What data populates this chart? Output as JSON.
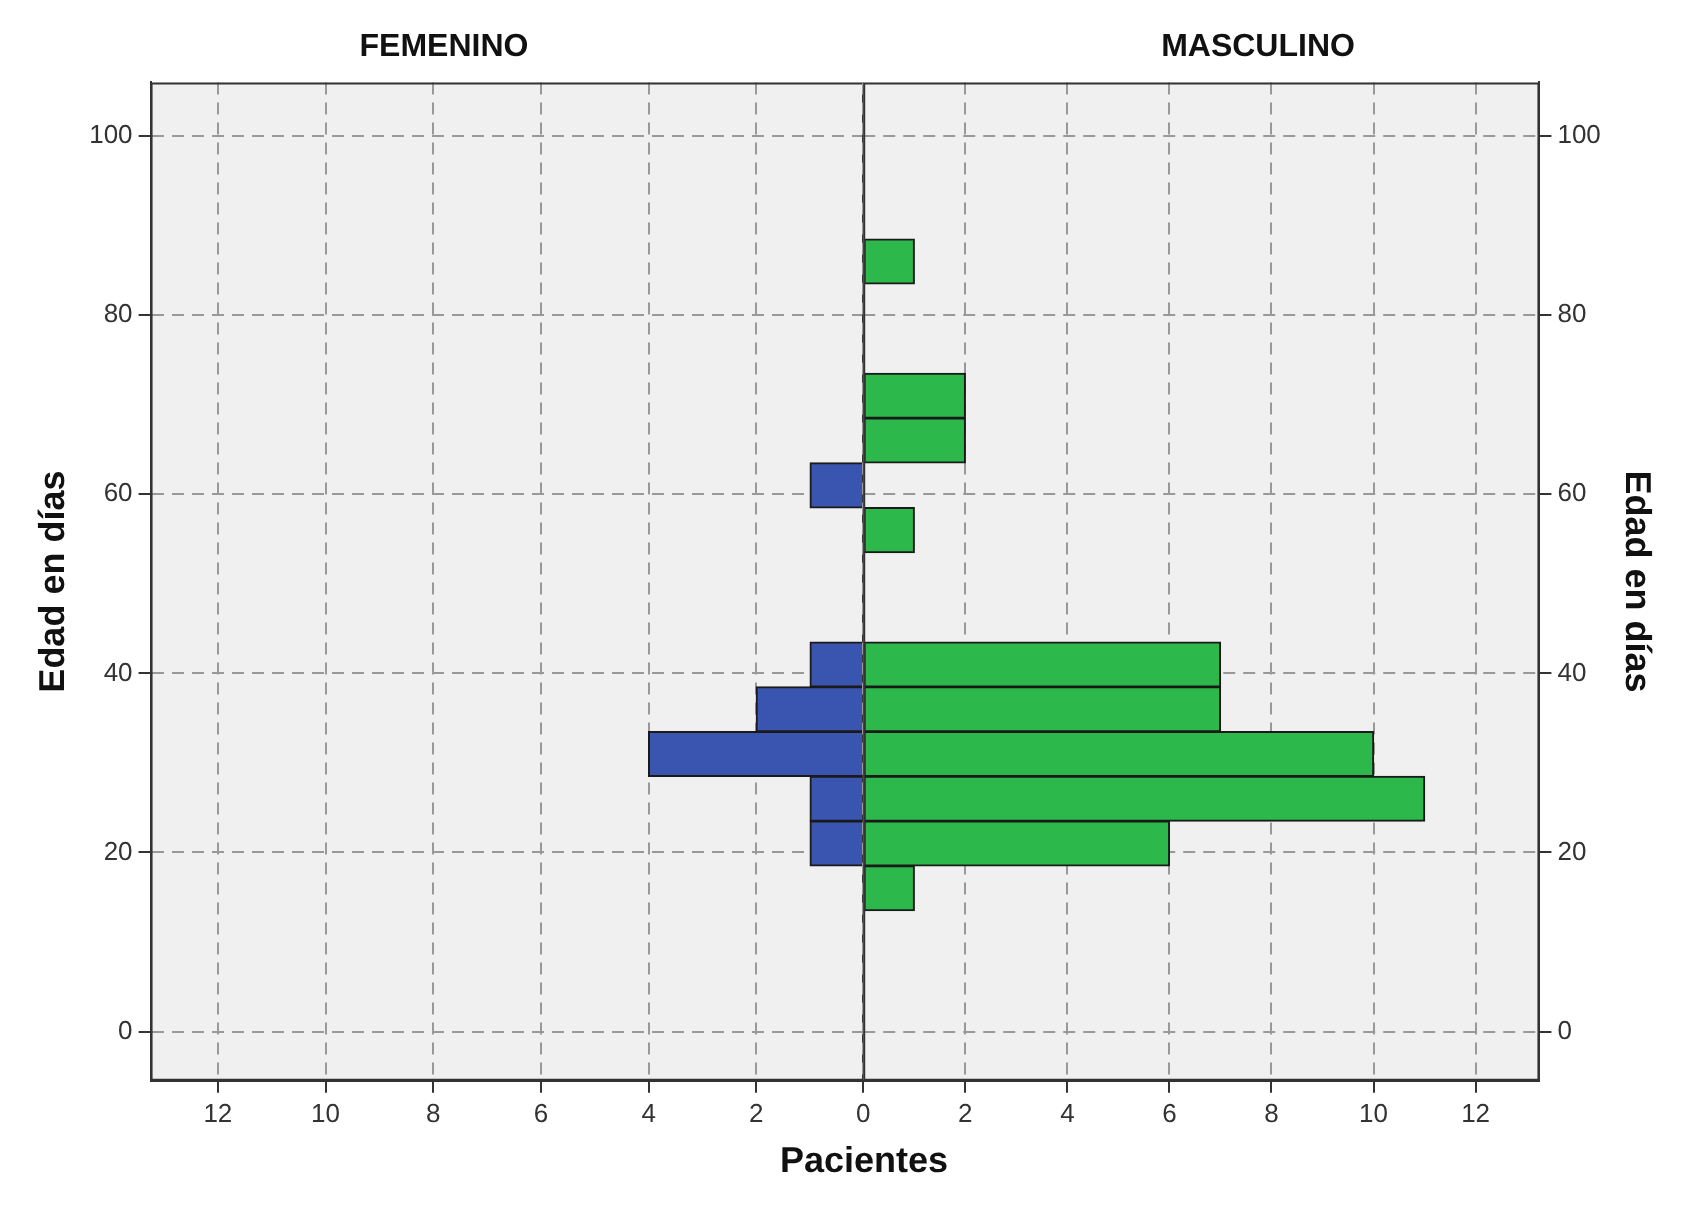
{
  "chart_data": [
    {
      "type": "histogram",
      "orientation": "horizontal",
      "title": "FEMENINO",
      "ylabel": "Edad en días",
      "bins": [
        13.5,
        18.5,
        23.5,
        28.5,
        33.5,
        38.5,
        43.5,
        48.5,
        53.5,
        58.5,
        63.5,
        68.5,
        73.5,
        78.5,
        83.5,
        88.5
      ],
      "values": [
        0,
        1,
        1,
        4,
        2,
        1,
        0,
        0,
        0,
        1,
        0,
        0,
        0,
        0,
        0
      ],
      "color": "#3a55b0",
      "xlim": [
        13.25,
        0
      ],
      "xticks": [
        12,
        10,
        8,
        6,
        4,
        2
      ],
      "ylim": [
        -5.5,
        106
      ],
      "yticks": [
        0,
        20,
        40,
        60,
        80,
        100
      ],
      "grid": true
    },
    {
      "type": "histogram",
      "orientation": "horizontal",
      "title": "MASCULINO",
      "ylabel": "Edad en días",
      "xlabel": "Pacientes",
      "bins": [
        13.5,
        18.5,
        23.5,
        28.5,
        33.5,
        38.5,
        43.5,
        48.5,
        53.5,
        58.5,
        63.5,
        68.5,
        73.5,
        78.5,
        83.5,
        88.5
      ],
      "values": [
        1,
        6,
        11,
        10,
        7,
        7,
        0,
        0,
        1,
        0,
        2,
        2,
        0,
        0,
        1
      ],
      "color": "#2db84b",
      "xlim": [
        0,
        13.25
      ],
      "xticks": [
        0,
        2,
        4,
        6,
        8,
        10,
        12
      ],
      "ylim": [
        -5.5,
        106
      ],
      "yticks": [
        0,
        20,
        40,
        60,
        80,
        100
      ],
      "grid": true
    }
  ]
}
